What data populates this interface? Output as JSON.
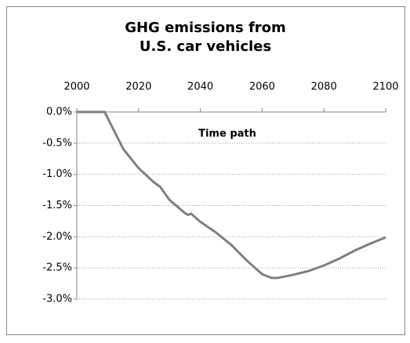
{
  "chart_data": {
    "type": "line",
    "title": [
      "GHG emissions from",
      "U.S. car vehicles"
    ],
    "annotation": "Time path",
    "x": [
      2000,
      2005,
      2009,
      2015,
      2020,
      2025,
      2027,
      2030,
      2035,
      2036,
      2037,
      2040,
      2045,
      2050,
      2055,
      2060,
      2063,
      2065,
      2070,
      2075,
      2080,
      2085,
      2090,
      2095,
      2100
    ],
    "series": [
      {
        "name": "Time path",
        "color": "#7f7f7f",
        "values": [
          0,
          0,
          0,
          -0.59,
          -0.9,
          -1.13,
          -1.2,
          -1.41,
          -1.62,
          -1.65,
          -1.63,
          -1.76,
          -1.93,
          -2.13,
          -2.38,
          -2.6,
          -2.66,
          -2.66,
          -2.61,
          -2.55,
          -2.46,
          -2.35,
          -2.22,
          -2.11,
          -2.01
        ]
      }
    ],
    "xlim": [
      2000,
      2100
    ],
    "xticks": [
      2000,
      2020,
      2040,
      2060,
      2080,
      2100
    ],
    "ylim": [
      -3,
      0
    ],
    "yticks": [
      {
        "value": 0,
        "label": "0.0%"
      },
      {
        "value": -0.5,
        "label": "-0.5%"
      },
      {
        "value": -1,
        "label": "-1.0%"
      },
      {
        "value": -1.5,
        "label": "-1.5%"
      },
      {
        "value": -2,
        "label": "-2.0%"
      },
      {
        "value": -2.5,
        "label": "-2.5%"
      },
      {
        "value": -3,
        "label": "-3.0%"
      }
    ],
    "grid": true
  }
}
